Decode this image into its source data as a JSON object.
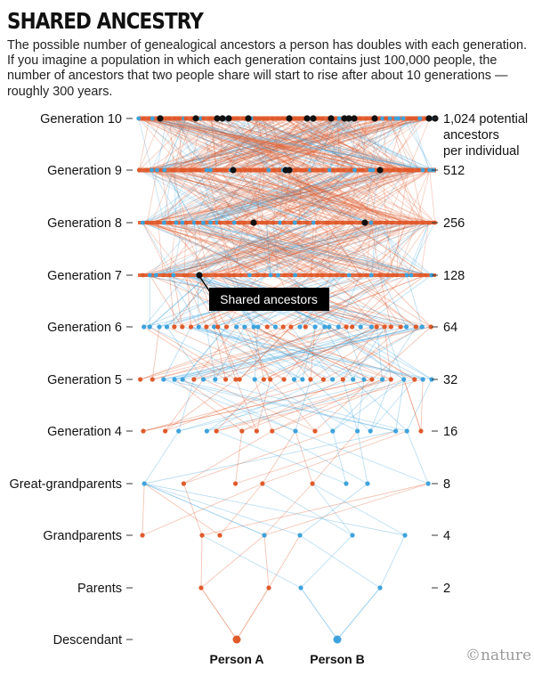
{
  "title": "SHARED ANCESTRY",
  "subtitle": "The possible number of genealogical ancestors a person has doubles with each generation. If you imagine a population in which each generation contains just 100,000 people, the number of ancestors that two people share will start to rise after about 10 generations — roughly 300 years.",
  "rows": [
    {
      "label": "Generation 10",
      "count": "1,024 potential",
      "count_extra": [
        "ancestors",
        "per individual"
      ]
    },
    {
      "label": "Generation 9",
      "count": "512"
    },
    {
      "label": "Generation 8",
      "count": "256"
    },
    {
      "label": "Generation 7",
      "count": "128"
    },
    {
      "label": "Generation 6",
      "count": "64"
    },
    {
      "label": "Generation 5",
      "count": "32"
    },
    {
      "label": "Generation 4",
      "count": "16"
    },
    {
      "label": "Great-grandparents",
      "count": "8"
    },
    {
      "label": "Grandparents",
      "count": "4"
    },
    {
      "label": "Parents",
      "count": "2"
    },
    {
      "label": "Descendant",
      "count": ""
    }
  ],
  "callout": "Shared ancestors",
  "persons": [
    "Person A",
    "Person B"
  ],
  "logo": "©nature",
  "colors": {
    "person_a": "#e05a2b",
    "person_b": "#3ea3dc",
    "shared": "#111111",
    "callout_bg": "#000000",
    "callout_text": "#ffffff"
  }
}
